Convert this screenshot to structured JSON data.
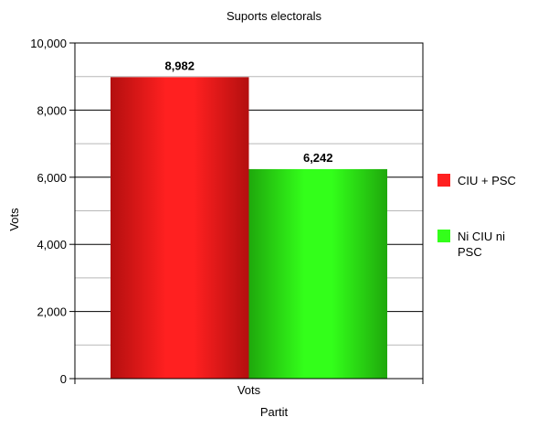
{
  "chart_data": {
    "type": "bar",
    "title": "Suports electorals",
    "xlabel": "Partit",
    "ylabel": "Vots",
    "categories": [
      "Vots"
    ],
    "series": [
      {
        "name": "CIU + PSC",
        "values": [
          8982
        ],
        "label": "8,982",
        "color": "#ff2020",
        "dark": "#b30f0f"
      },
      {
        "name": "Ni CIU ni PSC",
        "values": [
          6242
        ],
        "label": "6,242",
        "color": "#33ff1a",
        "dark": "#1fa80c"
      }
    ],
    "ylim": [
      0,
      10000
    ],
    "yticks": [
      0,
      2000,
      4000,
      6000,
      8000,
      10000
    ],
    "ytick_labels": [
      "0",
      "2,000",
      "4,000",
      "6,000",
      "8,000",
      "10,000"
    ],
    "grid": true,
    "legend_position": "right"
  }
}
